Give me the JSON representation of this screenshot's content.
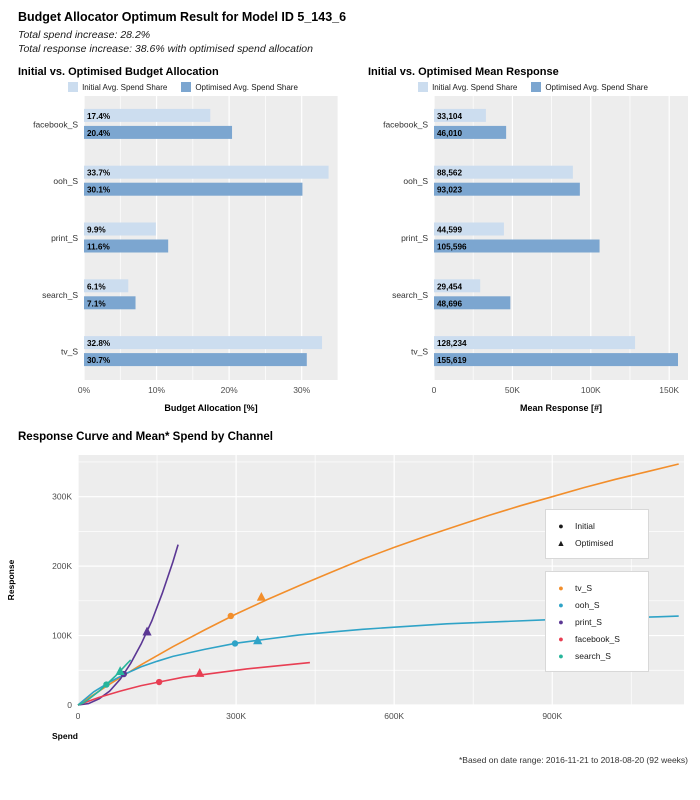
{
  "header": {
    "title": "Budget Allocator Optimum Result for Model ID 5_143_6",
    "subtitle1": "Total spend increase: 28.2%",
    "subtitle2": "Total response increase: 38.6% with optimised spend allocation"
  },
  "legend": {
    "initial_label": "Initial Avg. Spend Share",
    "optimised_label": "Optimised Avg. Spend Share"
  },
  "colors": {
    "initial": "#CCDDEF",
    "optimised": "#7CA6D0",
    "panel_bg": "#EDEDED",
    "grid": "#FFFFFF"
  },
  "footnote": "*Based on date range: 2016-11-21 to 2018-08-20 (92 weeks)",
  "chart_data": [
    {
      "type": "bar",
      "title": "Initial vs. Optimised Budget Allocation",
      "orientation": "horizontal",
      "categories": [
        "facebook_S",
        "ooh_S",
        "print_S",
        "search_S",
        "tv_S"
      ],
      "series": [
        {
          "name": "Initial Avg. Spend Share",
          "values": [
            17.4,
            33.7,
            9.9,
            6.1,
            32.8
          ]
        },
        {
          "name": "Optimised Avg. Spend Share",
          "values": [
            20.4,
            30.1,
            11.6,
            7.1,
            30.7
          ]
        }
      ],
      "value_labels": [
        [
          "17.4%",
          "33.7%",
          "9.9%",
          "6.1%",
          "32.8%"
        ],
        [
          "20.4%",
          "30.1%",
          "11.6%",
          "7.1%",
          "30.7%"
        ]
      ],
      "xlabel": "Budget Allocation [%]",
      "xlim": [
        0,
        35
      ],
      "ticks": [
        0,
        10,
        20,
        30
      ],
      "tick_labels": [
        "0%",
        "10%",
        "20%",
        "30%"
      ]
    },
    {
      "type": "bar",
      "title": "Initial vs. Optimised Mean Response",
      "orientation": "horizontal",
      "categories": [
        "facebook_S",
        "ooh_S",
        "print_S",
        "search_S",
        "tv_S"
      ],
      "series": [
        {
          "name": "Initial Avg. Spend Share",
          "values": [
            33104,
            88562,
            44599,
            29454,
            128234
          ]
        },
        {
          "name": "Optimised Avg. Spend Share",
          "values": [
            46010,
            93023,
            105596,
            48696,
            155619
          ]
        }
      ],
      "value_labels": [
        [
          "33,104",
          "88,562",
          "44,599",
          "29,454",
          "128,234"
        ],
        [
          "46,010",
          "93,023",
          "105,596",
          "48,696",
          "155,619"
        ]
      ],
      "xlabel": "Mean Response [#]",
      "xlim": [
        0,
        162000
      ],
      "ticks": [
        0,
        50000,
        100000,
        150000
      ],
      "tick_labels": [
        "0",
        "50K",
        "100K",
        "150K"
      ]
    },
    {
      "type": "line",
      "title": "Response Curve and Mean* Spend by Channel",
      "xlabel": "Spend",
      "ylabel": "Response",
      "units": "thousands",
      "xlim": [
        0,
        1150
      ],
      "ylim": [
        0,
        360
      ],
      "x_ticks": [
        0,
        300,
        600,
        900
      ],
      "x_tick_labels": [
        "0",
        "300K",
        "600K",
        "900K"
      ],
      "y_ticks": [
        0,
        100,
        200,
        300
      ],
      "y_tick_labels": [
        "0",
        "100K",
        "200K",
        "300K"
      ],
      "shape_legend": [
        {
          "label": "Initial",
          "shape": "circle"
        },
        {
          "label": "Optimised",
          "shape": "triangle"
        }
      ],
      "legend_order": [
        "tv_S",
        "ooh_S",
        "print_S",
        "facebook_S",
        "search_S"
      ],
      "channels": [
        {
          "name": "tv_S",
          "color": "#F28E2B",
          "initial_point": [
            290,
            128.2
          ],
          "optimised_point": [
            348,
            155.6
          ],
          "curve": [
            [
              0,
              0
            ],
            [
              60,
              30
            ],
            [
              120,
              58
            ],
            [
              180,
              84
            ],
            [
              240,
              108
            ],
            [
              300,
              131
            ],
            [
              360,
              152
            ],
            [
              420,
              172
            ],
            [
              480,
              191
            ],
            [
              540,
              210
            ],
            [
              600,
              227
            ],
            [
              660,
              243
            ],
            [
              720,
              258
            ],
            [
              780,
              273
            ],
            [
              840,
              287
            ],
            [
              900,
              300
            ],
            [
              960,
              313
            ],
            [
              1020,
              325
            ],
            [
              1080,
              336
            ],
            [
              1140,
              347
            ]
          ]
        },
        {
          "name": "ooh_S",
          "color": "#2FA3C7",
          "initial_point": [
            298,
            88.6
          ],
          "optimised_point": [
            341,
            93.0
          ],
          "curve": [
            [
              0,
              0
            ],
            [
              30,
              19
            ],
            [
              60,
              33
            ],
            [
              90,
              45
            ],
            [
              120,
              55
            ],
            [
              150,
              63
            ],
            [
              180,
              70
            ],
            [
              240,
              80
            ],
            [
              300,
              89
            ],
            [
              360,
              95
            ],
            [
              420,
              101
            ],
            [
              480,
              105
            ],
            [
              540,
              109
            ],
            [
              600,
              112
            ],
            [
              700,
              117
            ],
            [
              800,
              120
            ],
            [
              900,
              123
            ],
            [
              1000,
              125
            ],
            [
              1100,
              127
            ],
            [
              1140,
              128
            ]
          ]
        },
        {
          "name": "print_S",
          "color": "#5B3794",
          "initial_point": [
            87,
            44.6
          ],
          "optimised_point": [
            131,
            105.6
          ],
          "curve": [
            [
              0,
              0
            ],
            [
              20,
              2
            ],
            [
              40,
              9
            ],
            [
              60,
              20
            ],
            [
              80,
              37
            ],
            [
              100,
              60
            ],
            [
              120,
              88
            ],
            [
              140,
              121
            ],
            [
              160,
              161
            ],
            [
              180,
              206
            ],
            [
              190,
              231
            ]
          ]
        },
        {
          "name": "facebook_S",
          "color": "#E83E53",
          "initial_point": [
            154,
            33.1
          ],
          "optimised_point": [
            231,
            46.0
          ],
          "curve": [
            [
              0,
              0
            ],
            [
              40,
              11
            ],
            [
              80,
              20
            ],
            [
              120,
              28
            ],
            [
              160,
              34
            ],
            [
              200,
              40
            ],
            [
              240,
              44
            ],
            [
              280,
              48
            ],
            [
              320,
              52
            ],
            [
              360,
              55
            ],
            [
              400,
              58
            ],
            [
              440,
              61
            ]
          ]
        },
        {
          "name": "search_S",
          "color": "#27B59B",
          "initial_point": [
            54,
            29.5
          ],
          "optimised_point": [
            80,
            48.7
          ],
          "curve": [
            [
              0,
              0
            ],
            [
              10,
              3
            ],
            [
              20,
              8
            ],
            [
              30,
              14
            ],
            [
              40,
              20
            ],
            [
              50,
              27
            ],
            [
              60,
              34
            ],
            [
              70,
              41
            ],
            [
              80,
              49
            ],
            [
              90,
              57
            ],
            [
              100,
              65
            ]
          ]
        }
      ]
    }
  ]
}
